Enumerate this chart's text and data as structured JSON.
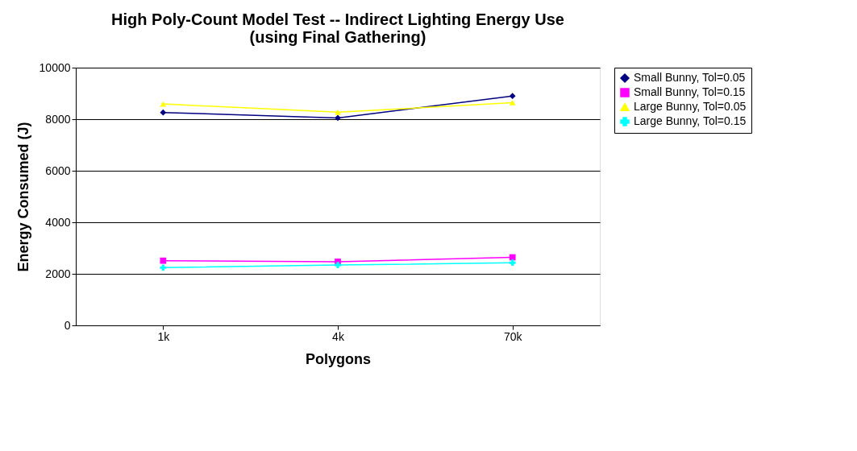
{
  "chart_data": {
    "type": "line",
    "title": [
      "High Poly-Count Model Test -- Indirect Lighting Energy Use",
      "(using Final Gathering)"
    ],
    "xlabel": "Polygons",
    "ylabel": "Energy Consumed (J)",
    "categories": [
      "1k",
      "4k",
      "70k"
    ],
    "ylim": [
      0,
      10000
    ],
    "yticks": [
      0,
      2000,
      4000,
      6000,
      8000,
      10000
    ],
    "grid": "y",
    "legend": "right",
    "series": [
      {
        "name": "Small Bunny, Tol=0.05",
        "color": "#000080",
        "marker": "diamond",
        "values": [
          8260,
          8050,
          8900
        ]
      },
      {
        "name": "Small Bunny, Tol=0.15",
        "color": "#ff00ff",
        "marker": "square",
        "values": [
          2510,
          2470,
          2640
        ]
      },
      {
        "name": "Large Bunny, Tol=0.05",
        "color": "#ffff00",
        "marker": "triangle",
        "values": [
          8590,
          8270,
          8640
        ]
      },
      {
        "name": "Large Bunny, Tol=0.15",
        "color": "#00ffff",
        "marker": "cross",
        "values": [
          2240,
          2340,
          2430
        ]
      }
    ]
  }
}
